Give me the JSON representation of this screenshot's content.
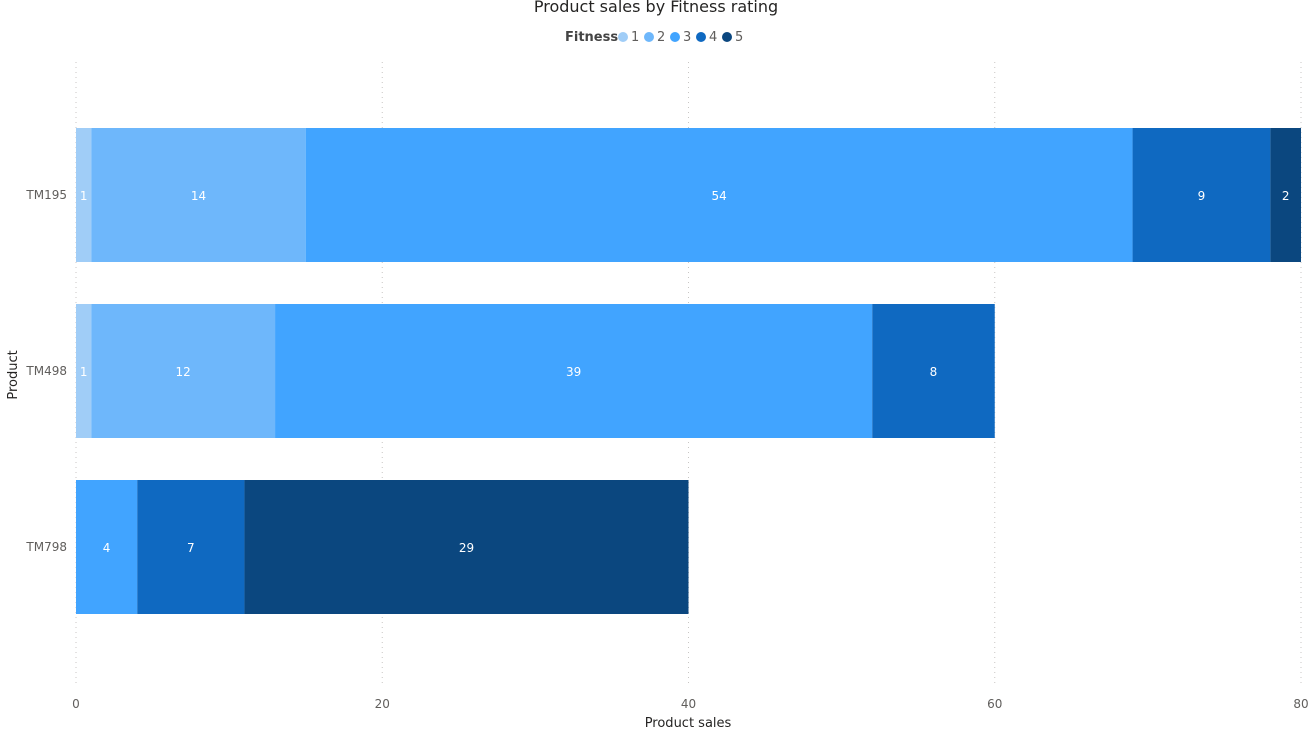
{
  "chart_data": {
    "type": "bar",
    "orientation": "horizontal",
    "stacked": true,
    "title": "Product sales by Fitness rating",
    "legend_title": "Fitness",
    "legend_position": "top-center",
    "xlabel": "Product sales",
    "ylabel": "Product",
    "xlim": [
      0,
      80
    ],
    "xticks": [
      0,
      20,
      40,
      60,
      80
    ],
    "grid": true,
    "categories": [
      "TM195",
      "TM498",
      "TM798"
    ],
    "series": [
      {
        "name": "1",
        "color": "#a0cdf7",
        "values": [
          1,
          1,
          0
        ]
      },
      {
        "name": "2",
        "color": "#6eb7fb",
        "values": [
          14,
          12,
          0
        ]
      },
      {
        "name": "3",
        "color": "#41a4ff",
        "values": [
          54,
          39,
          4
        ]
      },
      {
        "name": "4",
        "color": "#0f69c1",
        "values": [
          9,
          8,
          7
        ]
      },
      {
        "name": "5",
        "color": "#0b477f",
        "values": [
          2,
          0,
          29
        ]
      }
    ]
  }
}
